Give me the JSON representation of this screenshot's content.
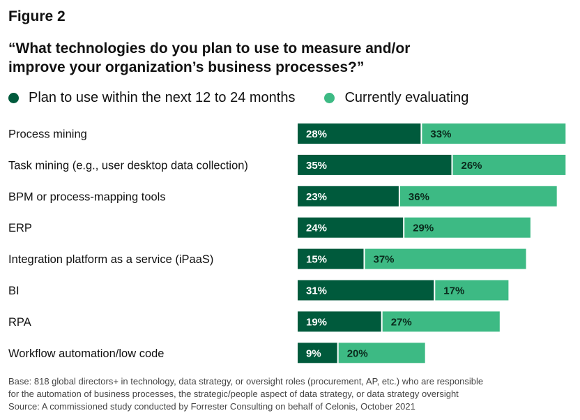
{
  "figure_label": "Figure 2",
  "title_lines": [
    "“What technologies do you plan to use to measure and/or",
    "improve your organization’s business processes?”"
  ],
  "legend": [
    {
      "label": "Plan to use within the next 12 to 24 months",
      "color": "#005a3c"
    },
    {
      "label": "Currently evaluating",
      "color": "#3dba84"
    }
  ],
  "chart_data": {
    "type": "bar",
    "orientation": "horizontal",
    "stacked": true,
    "categories": [
      "Process mining",
      "Task mining (e.g., user desktop data collection)",
      "BPM or process-mapping tools",
      "ERP",
      "Integration platform as a service (iPaaS)",
      "BI",
      "RPA",
      "Workflow automation/low code"
    ],
    "series": [
      {
        "name": "Plan to use within the next 12 to 24 months",
        "values": [
          28,
          35,
          23,
          24,
          15,
          31,
          19,
          9
        ],
        "color": "#005a3c"
      },
      {
        "name": "Currently evaluating",
        "values": [
          33,
          26,
          36,
          29,
          37,
          17,
          27,
          20
        ],
        "color": "#3dba84"
      }
    ],
    "value_suffix": "%",
    "grid": false,
    "legend_position": "top-left"
  },
  "footnote_lines": [
    "Base: 818 global directors+ in technology, data strategy, or oversight roles (procurement, AP, etc.) who are responsible",
    "for the automation of business processes, the strategic/people aspect of data strategy, or data strategy oversight",
    "Source: A commissioned study conducted by Forrester Consulting on behalf of Celonis, October 2021"
  ]
}
